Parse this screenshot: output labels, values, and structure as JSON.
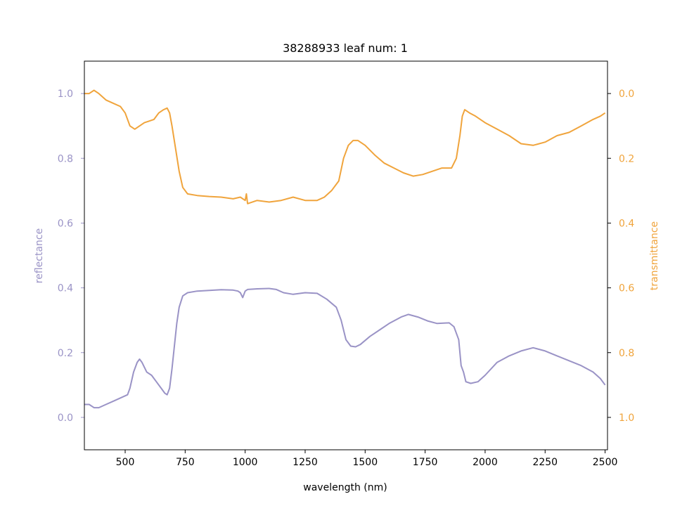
{
  "chart_data": {
    "type": "line",
    "title": "38288933 leaf num: 1",
    "xlabel": "wavelength (nm)",
    "ylabel_left": "reflectance",
    "ylabel_right": "transmittance",
    "xlim": [
      330,
      2510
    ],
    "ylim_left": [
      -0.1,
      1.1
    ],
    "ylim_right": [
      1.1,
      -0.1
    ],
    "right_axis_inverted": true,
    "x_ticks": [
      500,
      750,
      1000,
      1250,
      1500,
      1750,
      2000,
      2250,
      2500
    ],
    "y_ticks_left": [
      0.0,
      0.2,
      0.4,
      0.6,
      0.8,
      1.0
    ],
    "y_ticks_right": [
      0.0,
      0.2,
      0.4,
      0.6,
      0.8,
      1.0
    ],
    "grid": false,
    "colors": {
      "reflectance": "#9a93c6",
      "transmittance": "#f0a43c",
      "axis": "#000000"
    },
    "series": [
      {
        "name": "reflectance",
        "axis": "left",
        "points": [
          [
            330,
            0.04
          ],
          [
            350,
            0.04
          ],
          [
            370,
            0.03
          ],
          [
            390,
            0.03
          ],
          [
            420,
            0.04
          ],
          [
            450,
            0.05
          ],
          [
            480,
            0.06
          ],
          [
            510,
            0.07
          ],
          [
            520,
            0.09
          ],
          [
            535,
            0.14
          ],
          [
            550,
            0.17
          ],
          [
            560,
            0.18
          ],
          [
            570,
            0.17
          ],
          [
            590,
            0.14
          ],
          [
            610,
            0.13
          ],
          [
            630,
            0.11
          ],
          [
            650,
            0.09
          ],
          [
            665,
            0.075
          ],
          [
            675,
            0.07
          ],
          [
            685,
            0.09
          ],
          [
            695,
            0.15
          ],
          [
            705,
            0.22
          ],
          [
            715,
            0.29
          ],
          [
            725,
            0.34
          ],
          [
            740,
            0.375
          ],
          [
            760,
            0.385
          ],
          [
            800,
            0.39
          ],
          [
            850,
            0.392
          ],
          [
            900,
            0.394
          ],
          [
            950,
            0.393
          ],
          [
            970,
            0.39
          ],
          [
            980,
            0.385
          ],
          [
            990,
            0.37
          ],
          [
            1000,
            0.39
          ],
          [
            1010,
            0.395
          ],
          [
            1050,
            0.397
          ],
          [
            1100,
            0.398
          ],
          [
            1130,
            0.395
          ],
          [
            1160,
            0.385
          ],
          [
            1200,
            0.38
          ],
          [
            1250,
            0.385
          ],
          [
            1300,
            0.383
          ],
          [
            1340,
            0.365
          ],
          [
            1380,
            0.34
          ],
          [
            1400,
            0.3
          ],
          [
            1420,
            0.24
          ],
          [
            1440,
            0.22
          ],
          [
            1460,
            0.218
          ],
          [
            1480,
            0.225
          ],
          [
            1520,
            0.25
          ],
          [
            1560,
            0.27
          ],
          [
            1600,
            0.29
          ],
          [
            1650,
            0.31
          ],
          [
            1680,
            0.318
          ],
          [
            1720,
            0.31
          ],
          [
            1760,
            0.298
          ],
          [
            1800,
            0.29
          ],
          [
            1850,
            0.292
          ],
          [
            1870,
            0.28
          ],
          [
            1890,
            0.24
          ],
          [
            1900,
            0.16
          ],
          [
            1910,
            0.14
          ],
          [
            1920,
            0.11
          ],
          [
            1940,
            0.105
          ],
          [
            1970,
            0.11
          ],
          [
            2000,
            0.13
          ],
          [
            2050,
            0.17
          ],
          [
            2100,
            0.19
          ],
          [
            2150,
            0.205
          ],
          [
            2200,
            0.215
          ],
          [
            2250,
            0.205
          ],
          [
            2300,
            0.19
          ],
          [
            2350,
            0.175
          ],
          [
            2400,
            0.16
          ],
          [
            2450,
            0.14
          ],
          [
            2480,
            0.12
          ],
          [
            2500,
            0.1
          ]
        ]
      },
      {
        "name": "transmittance",
        "axis": "right",
        "points": [
          [
            330,
            0.0
          ],
          [
            350,
            0.0
          ],
          [
            370,
            -0.01
          ],
          [
            390,
            0.0
          ],
          [
            420,
            0.02
          ],
          [
            450,
            0.03
          ],
          [
            480,
            0.04
          ],
          [
            500,
            0.06
          ],
          [
            520,
            0.1
          ],
          [
            540,
            0.11
          ],
          [
            560,
            0.1
          ],
          [
            580,
            0.09
          ],
          [
            600,
            0.085
          ],
          [
            620,
            0.08
          ],
          [
            640,
            0.06
          ],
          [
            660,
            0.05
          ],
          [
            675,
            0.045
          ],
          [
            685,
            0.06
          ],
          [
            695,
            0.1
          ],
          [
            710,
            0.17
          ],
          [
            725,
            0.24
          ],
          [
            740,
            0.29
          ],
          [
            760,
            0.31
          ],
          [
            800,
            0.315
          ],
          [
            850,
            0.318
          ],
          [
            900,
            0.32
          ],
          [
            950,
            0.325
          ],
          [
            980,
            0.32
          ],
          [
            1000,
            0.33
          ],
          [
            1005,
            0.31
          ],
          [
            1010,
            0.34
          ],
          [
            1050,
            0.33
          ],
          [
            1100,
            0.335
          ],
          [
            1150,
            0.33
          ],
          [
            1200,
            0.32
          ],
          [
            1250,
            0.33
          ],
          [
            1300,
            0.33
          ],
          [
            1330,
            0.32
          ],
          [
            1360,
            0.3
          ],
          [
            1390,
            0.27
          ],
          [
            1410,
            0.2
          ],
          [
            1430,
            0.16
          ],
          [
            1450,
            0.145
          ],
          [
            1470,
            0.145
          ],
          [
            1500,
            0.16
          ],
          [
            1540,
            0.19
          ],
          [
            1580,
            0.215
          ],
          [
            1620,
            0.23
          ],
          [
            1660,
            0.245
          ],
          [
            1700,
            0.255
          ],
          [
            1740,
            0.25
          ],
          [
            1780,
            0.24
          ],
          [
            1820,
            0.23
          ],
          [
            1860,
            0.23
          ],
          [
            1880,
            0.2
          ],
          [
            1895,
            0.13
          ],
          [
            1905,
            0.07
          ],
          [
            1915,
            0.05
          ],
          [
            1935,
            0.06
          ],
          [
            1960,
            0.07
          ],
          [
            2000,
            0.09
          ],
          [
            2050,
            0.11
          ],
          [
            2100,
            0.13
          ],
          [
            2150,
            0.155
          ],
          [
            2200,
            0.16
          ],
          [
            2250,
            0.15
          ],
          [
            2300,
            0.13
          ],
          [
            2350,
            0.12
          ],
          [
            2400,
            0.1
          ],
          [
            2450,
            0.08
          ],
          [
            2480,
            0.07
          ],
          [
            2500,
            0.06
          ]
        ]
      }
    ]
  }
}
